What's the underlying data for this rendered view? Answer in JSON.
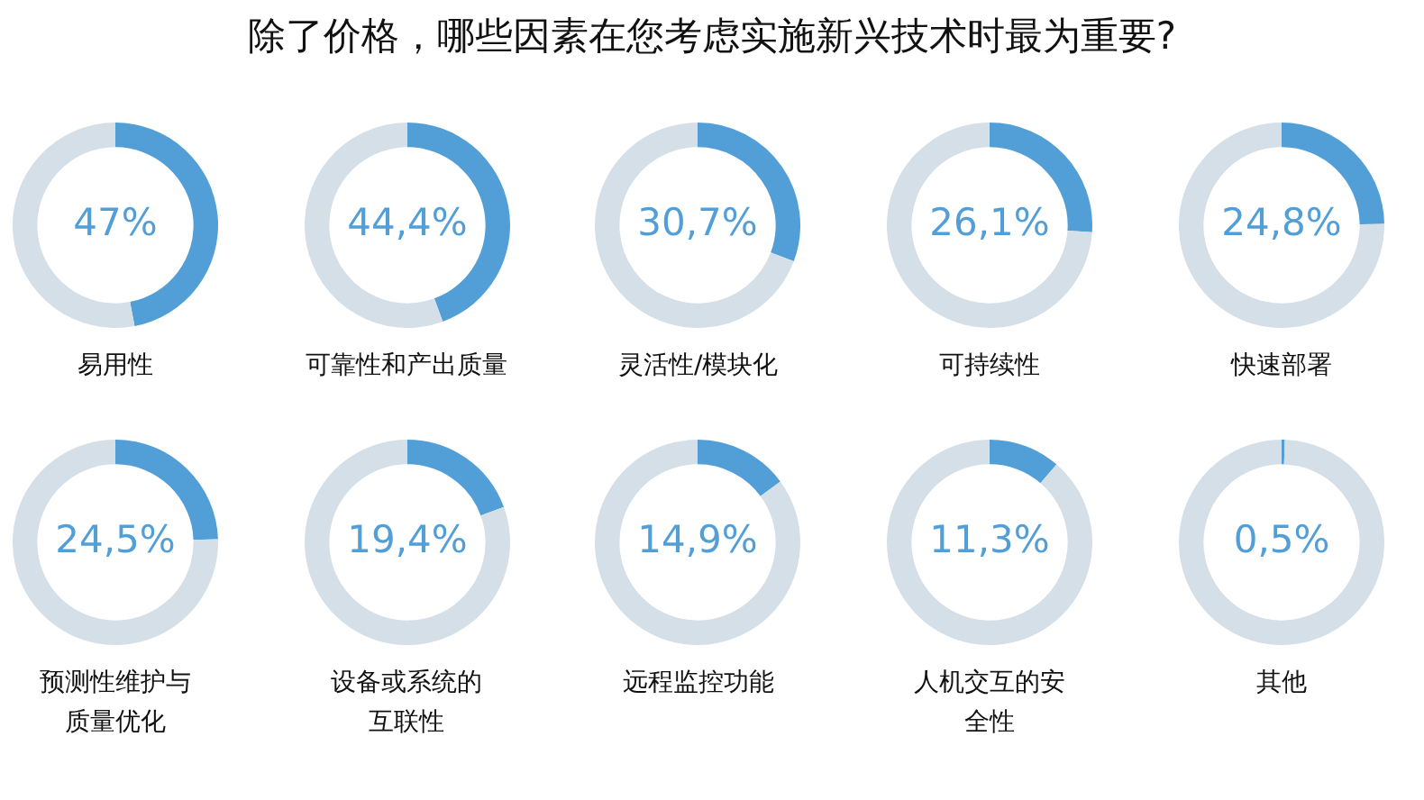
{
  "chart_data": [
    {
      "type": "other",
      "title": "除了价格，哪些因素在您考虑实施新兴技术时最为重要?"
    },
    {
      "type": "donut",
      "xlabel": "易用性",
      "categories": [
        null,
        null
      ],
      "values": [
        47,
        53
      ],
      "value_labels": [
        "47%",
        null
      ],
      "colors": [
        "#529fd8",
        "#d5dfe7"
      ]
    },
    {
      "type": "donut",
      "xlabel": "可靠性和产出质量",
      "categories": [
        null,
        null
      ],
      "values": [
        44.4,
        55.6
      ],
      "value_labels": [
        "44,4%",
        null
      ],
      "colors": [
        "#529fd8",
        "#d5dfe7"
      ]
    },
    {
      "type": "donut",
      "xlabel": "灵活性/模块化",
      "categories": [
        null,
        null
      ],
      "values": [
        30.7,
        69.3
      ],
      "value_labels": [
        "30,7%",
        null
      ],
      "colors": [
        "#529fd8",
        "#d5dfe7"
      ]
    },
    {
      "type": "donut",
      "xlabel": "可持续性",
      "categories": [
        null,
        null
      ],
      "values": [
        26.1,
        73.9
      ],
      "value_labels": [
        "26,1%",
        null
      ],
      "colors": [
        "#529fd8",
        "#d5dfe7"
      ]
    },
    {
      "type": "donut",
      "xlabel": "快速部署",
      "categories": [
        null,
        null
      ],
      "values": [
        24.8,
        75.2
      ],
      "value_labels": [
        "24,8%",
        null
      ],
      "colors": [
        "#529fd8",
        "#d5dfe7"
      ]
    },
    {
      "type": "donut",
      "xlabel": "预测性维护与质量优化",
      "categories": [
        null,
        null
      ],
      "values": [
        24.5,
        75.5
      ],
      "value_labels": [
        "24,5%",
        null
      ],
      "colors": [
        "#529fd8",
        "#d5dfe7"
      ]
    },
    {
      "type": "donut",
      "xlabel": "设备或系统的互联性",
      "categories": [
        null,
        null
      ],
      "values": [
        19.4,
        80.6
      ],
      "value_labels": [
        "19,4%",
        null
      ],
      "colors": [
        "#529fd8",
        "#d5dfe7"
      ]
    },
    {
      "type": "donut",
      "xlabel": "远程监控功能",
      "categories": [
        null,
        null
      ],
      "values": [
        14.9,
        85.1
      ],
      "value_labels": [
        "14,9%",
        null
      ],
      "colors": [
        "#529fd8",
        "#d5dfe7"
      ]
    },
    {
      "type": "donut",
      "xlabel": "人机交互的安全性",
      "categories": [
        null,
        null
      ],
      "values": [
        11.3,
        88.7
      ],
      "value_labels": [
        "11,3%",
        null
      ],
      "colors": [
        "#529fd8",
        "#d5dfe7"
      ]
    },
    {
      "type": "donut",
      "xlabel": "其他",
      "categories": [
        null,
        null
      ],
      "values": [
        0.5,
        99.5
      ],
      "value_labels": [
        "0,5%",
        null
      ],
      "colors": [
        "#529fd8",
        "#d5dfe7"
      ]
    }
  ]
}
